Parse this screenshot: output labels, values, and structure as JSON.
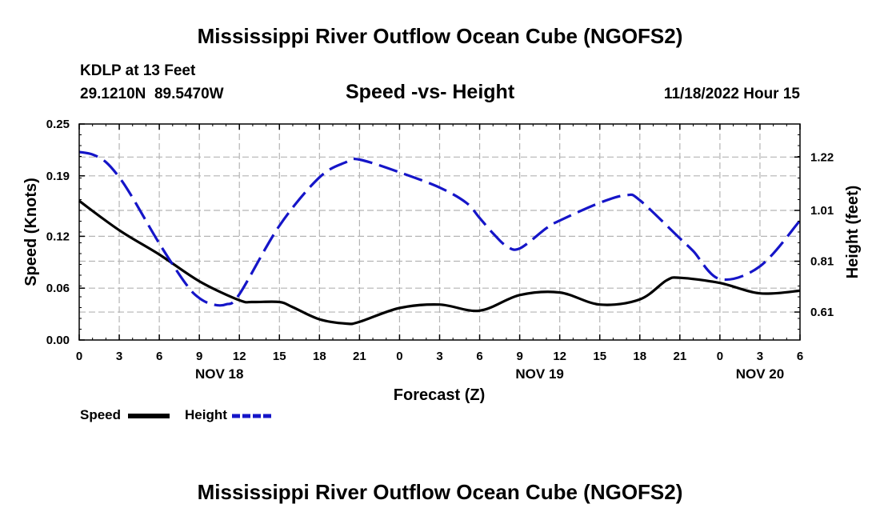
{
  "page": {
    "title": "Mississippi River Outflow Ocean Cube (NGOFS2)",
    "footer_title": "Mississippi River Outflow Ocean Cube (NGOFS2)",
    "station_line": "KDLP at 13 Feet",
    "coords_line": "29.1210N  89.5470W",
    "subtitle": "Speed -vs- Height",
    "datetime": "11/18/2022 Hour 15"
  },
  "chart_data": {
    "type": "line",
    "title": "Speed -vs- Height",
    "xlabel": "Forecast (Z)",
    "ylabel": "Speed (Knots)",
    "y2label": "Height (feet)",
    "x_hours_range": [
      0,
      54
    ],
    "x_tick_labels": [
      "0",
      "3",
      "6",
      "9",
      "12",
      "15",
      "18",
      "21",
      "0",
      "3",
      "6",
      "9",
      "12",
      "15",
      "18",
      "21",
      "0",
      "3",
      "6"
    ],
    "day_labels": [
      {
        "label": "NOV 18",
        "hour": 10.5
      },
      {
        "label": "NOV 19",
        "hour": 34.5
      },
      {
        "label": "NOV 20",
        "hour": 51
      }
    ],
    "ylim": [
      0,
      0.25
    ],
    "y_ticks": [
      0.0,
      0.06,
      0.12,
      0.19,
      0.25
    ],
    "y_tick_labels": [
      "0.00",
      "0.06",
      "0.12",
      "0.19",
      "0.25"
    ],
    "y2lim": [
      0.5,
      1.35
    ],
    "y2_ticks": [
      0.61,
      0.81,
      1.01,
      1.22
    ],
    "y2_tick_labels": [
      "0.61",
      "0.81",
      "1.01",
      "1.22"
    ],
    "grid": true,
    "legend": [
      {
        "label": "Speed",
        "color": "#000000",
        "style": "solid"
      },
      {
        "label": "Height",
        "color": "#1515c8",
        "style": "dashed"
      }
    ],
    "series": [
      {
        "name": "Speed",
        "axis": "left",
        "color": "#000000",
        "style": "solid",
        "x": [
          0,
          3,
          6,
          9,
          12,
          13,
          15,
          16,
          18,
          20,
          21,
          24,
          27,
          30,
          33,
          36,
          39,
          42,
          44,
          45,
          48,
          51,
          54
        ],
        "values": [
          0.161,
          0.127,
          0.099,
          0.068,
          0.046,
          0.044,
          0.044,
          0.038,
          0.024,
          0.019,
          0.021,
          0.037,
          0.041,
          0.034,
          0.052,
          0.055,
          0.041,
          0.047,
          0.069,
          0.072,
          0.066,
          0.054,
          0.057
        ]
      },
      {
        "name": "Height",
        "axis": "right",
        "color": "#1515c8",
        "style": "dashed",
        "x": [
          0,
          1,
          2,
          3,
          4,
          6,
          8,
          9,
          10,
          11,
          12,
          15,
          18,
          20,
          21,
          24,
          27,
          29,
          30,
          31,
          32,
          33,
          35,
          36,
          39,
          41,
          42,
          45,
          46,
          48,
          51,
          54
        ],
        "values": [
          1.24,
          1.23,
          1.2,
          1.14,
          1.06,
          0.88,
          0.72,
          0.665,
          0.64,
          0.64,
          0.68,
          0.95,
          1.14,
          1.2,
          1.21,
          1.16,
          1.1,
          1.04,
          0.98,
          0.92,
          0.87,
          0.86,
          0.94,
          0.97,
          1.04,
          1.07,
          1.05,
          0.9,
          0.85,
          0.74,
          0.79,
          0.97
        ]
      }
    ]
  }
}
